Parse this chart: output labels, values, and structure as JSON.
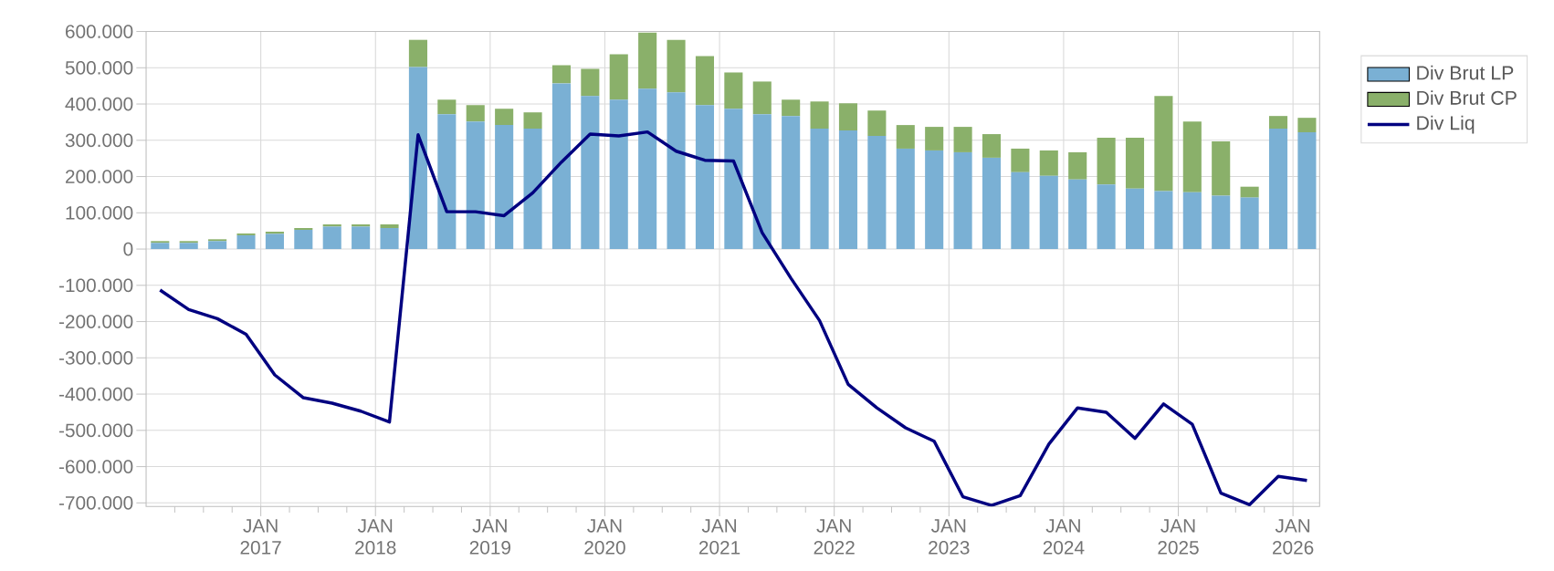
{
  "chart_data": {
    "type": "bar",
    "stacked": true,
    "x": [
      "2016-02-15",
      "2016-05-15",
      "2016-08-15",
      "2016-11-15",
      "2017-02-15",
      "2017-05-15",
      "2017-08-15",
      "2017-11-15",
      "2018-02-15",
      "2018-05-15",
      "2018-08-15",
      "2018-11-15",
      "2019-02-15",
      "2019-05-15",
      "2019-08-15",
      "2019-11-15",
      "2020-02-15",
      "2020-05-15",
      "2020-08-15",
      "2020-11-15",
      "2021-02-15",
      "2021-05-15",
      "2021-08-15",
      "2021-11-15",
      "2022-02-15",
      "2022-05-15",
      "2022-08-15",
      "2022-11-15",
      "2023-02-15",
      "2023-05-15",
      "2023-08-15",
      "2023-11-15",
      "2024-02-15",
      "2024-05-15",
      "2024-08-15",
      "2024-11-15",
      "2025-02-15",
      "2025-05-15",
      "2025-08-15",
      "2025-11-15",
      "2026-02-15"
    ],
    "series": [
      {
        "name": "Div Brut LP",
        "color": "#7ab0d4",
        "values": [
          17000,
          17000,
          22000,
          38000,
          42000,
          53000,
          62000,
          62000,
          58000,
          502000,
          372000,
          352000,
          342000,
          332000,
          457000,
          422000,
          412000,
          442000,
          432000,
          397000,
          387000,
          372000,
          367000,
          332000,
          327000,
          312000,
          277000,
          272000,
          267000,
          252000,
          212000,
          202000,
          192000,
          178000,
          167000,
          160000,
          157000,
          147000,
          142000,
          332000,
          322000
        ]
      },
      {
        "name": "Div Brut CP",
        "color": "#8ab06a",
        "values": [
          5000,
          5000,
          5000,
          5000,
          6000,
          5000,
          6000,
          6000,
          10000,
          75000,
          40000,
          45000,
          45000,
          45000,
          50000,
          75000,
          125000,
          155000,
          145000,
          135000,
          100000,
          90000,
          45000,
          75000,
          75000,
          70000,
          65000,
          65000,
          70000,
          65000,
          65000,
          70000,
          75000,
          129000,
          140000,
          262000,
          195000,
          150000,
          30000,
          35000,
          40000
        ]
      },
      {
        "name": "Div Liq",
        "type": "line",
        "color": "#000080",
        "line_style": "solid",
        "values": [
          -113000,
          -167000,
          -192000,
          -235000,
          -347000,
          -410000,
          -425000,
          -447000,
          -477000,
          315000,
          103000,
          103000,
          92000,
          155000,
          240000,
          317000,
          312000,
          323000,
          270000,
          245000,
          243000,
          45000,
          -80000,
          -197000,
          -373000,
          -438000,
          -493000,
          -530000,
          -683000,
          -707000,
          -680000,
          -538000,
          -438000,
          -450000,
          -522000,
          -427000,
          -483000,
          -673000,
          -705000,
          -627000,
          -638000
        ]
      }
    ],
    "xlim": [
      "2016-01-01",
      "2026-03-25"
    ],
    "xticks": [
      {
        "value": "2016-04-01",
        "label": null
      },
      {
        "value": "2016-07-01",
        "label": null
      },
      {
        "value": "2016-10-01",
        "label": null
      },
      {
        "value": "2017-01-01",
        "label": "JAN 2017"
      },
      {
        "value": "2017-04-01",
        "label": null
      },
      {
        "value": "2017-07-01",
        "label": null
      },
      {
        "value": "2017-10-01",
        "label": null
      },
      {
        "value": "2018-01-01",
        "label": "JAN 2018"
      },
      {
        "value": "2018-04-01",
        "label": null
      },
      {
        "value": "2018-07-01",
        "label": null
      },
      {
        "value": "2018-10-01",
        "label": null
      },
      {
        "value": "2019-01-01",
        "label": "JAN 2019"
      },
      {
        "value": "2019-04-01",
        "label": null
      },
      {
        "value": "2019-07-01",
        "label": null
      },
      {
        "value": "2019-10-01",
        "label": null
      },
      {
        "value": "2020-01-01",
        "label": "JAN 2020"
      },
      {
        "value": "2020-04-01",
        "label": null
      },
      {
        "value": "2020-07-01",
        "label": null
      },
      {
        "value": "2020-10-01",
        "label": null
      },
      {
        "value": "2021-01-01",
        "label": "JAN 2021"
      },
      {
        "value": "2021-04-01",
        "label": null
      },
      {
        "value": "2021-07-01",
        "label": null
      },
      {
        "value": "2021-10-01",
        "label": null
      },
      {
        "value": "2022-01-01",
        "label": "JAN 2022"
      },
      {
        "value": "2022-04-01",
        "label": null
      },
      {
        "value": "2022-07-01",
        "label": null
      },
      {
        "value": "2022-10-01",
        "label": null
      },
      {
        "value": "2023-01-01",
        "label": "JAN 2023"
      },
      {
        "value": "2023-04-01",
        "label": null
      },
      {
        "value": "2023-07-01",
        "label": null
      },
      {
        "value": "2023-10-01",
        "label": null
      },
      {
        "value": "2024-01-01",
        "label": "JAN 2024"
      },
      {
        "value": "2024-04-01",
        "label": null
      },
      {
        "value": "2024-07-01",
        "label": null
      },
      {
        "value": "2024-10-01",
        "label": null
      },
      {
        "value": "2025-01-01",
        "label": "JAN 2025"
      },
      {
        "value": "2025-04-01",
        "label": null
      },
      {
        "value": "2025-07-01",
        "label": null
      },
      {
        "value": "2025-10-01",
        "label": null
      },
      {
        "value": "2026-01-01",
        "label": "JAN 2026"
      }
    ],
    "ylim": [
      -710000,
      600000
    ],
    "yticks": [
      {
        "value": 600000,
        "label": "600.000"
      },
      {
        "value": 500000,
        "label": "500.000"
      },
      {
        "value": 400000,
        "label": "400.000"
      },
      {
        "value": 300000,
        "label": "300.000"
      },
      {
        "value": 200000,
        "label": "200.000"
      },
      {
        "value": 100000,
        "label": "100.000"
      },
      0,
      {
        "value": -100000,
        "label": "-100.000"
      },
      {
        "value": -200000,
        "label": "-200.000"
      },
      {
        "value": -300000,
        "label": "-300.000"
      },
      {
        "value": -400000,
        "label": "-400.000"
      },
      {
        "value": -500000,
        "label": "-500.000"
      },
      {
        "value": -600000,
        "label": "-600.000"
      },
      {
        "value": -700000,
        "label": "-700.000"
      }
    ],
    "grid": true,
    "legend": "top right"
  }
}
